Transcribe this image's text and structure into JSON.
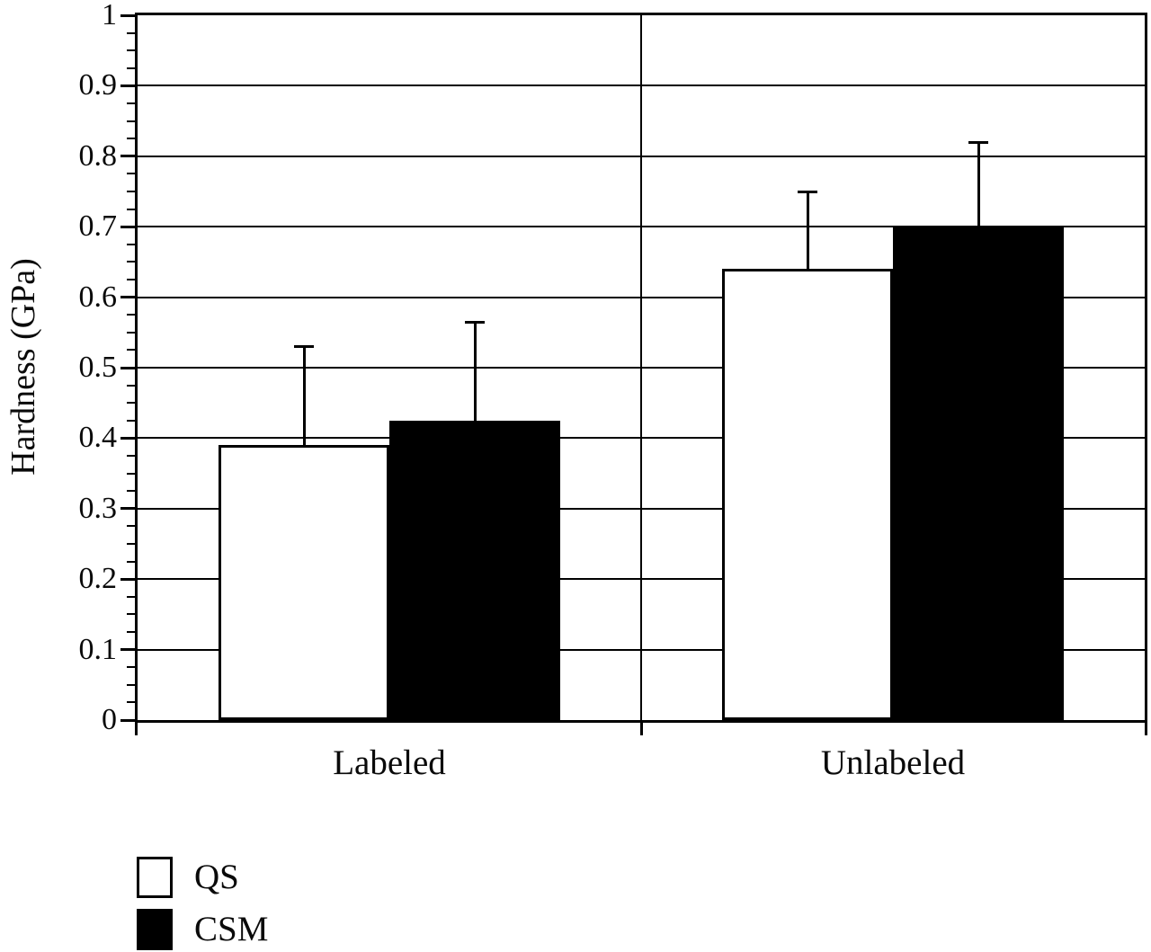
{
  "chart_data": {
    "type": "bar",
    "title": "",
    "xlabel": "",
    "ylabel": "Hardness (GPa)",
    "ylim": [
      0,
      1
    ],
    "ytick_values": [
      0,
      0.1,
      0.2,
      0.3,
      0.4,
      0.5,
      0.6,
      0.7,
      0.8,
      0.9,
      1
    ],
    "ytick_labels": [
      "0",
      "0.1",
      "0.2",
      "0.3",
      "0.4",
      "0.5",
      "0.6",
      "0.7",
      "0.8",
      "0.9",
      "1"
    ],
    "minor_tick_step": 0.025,
    "grid": "horizontal major gridlines on",
    "categories": [
      "Labeled",
      "Unlabeled"
    ],
    "series": [
      {
        "name": "QS",
        "fill": "#ffffff",
        "values": [
          0.39,
          0.64
        ],
        "error_plus": [
          0.14,
          0.11
        ]
      },
      {
        "name": "CSM",
        "fill": "#000000",
        "values": [
          0.425,
          0.7
        ],
        "error_plus": [
          0.14,
          0.12
        ]
      }
    ],
    "legend_position": "bottom-left",
    "line_color": "#000000",
    "background_color": "#ffffff"
  }
}
